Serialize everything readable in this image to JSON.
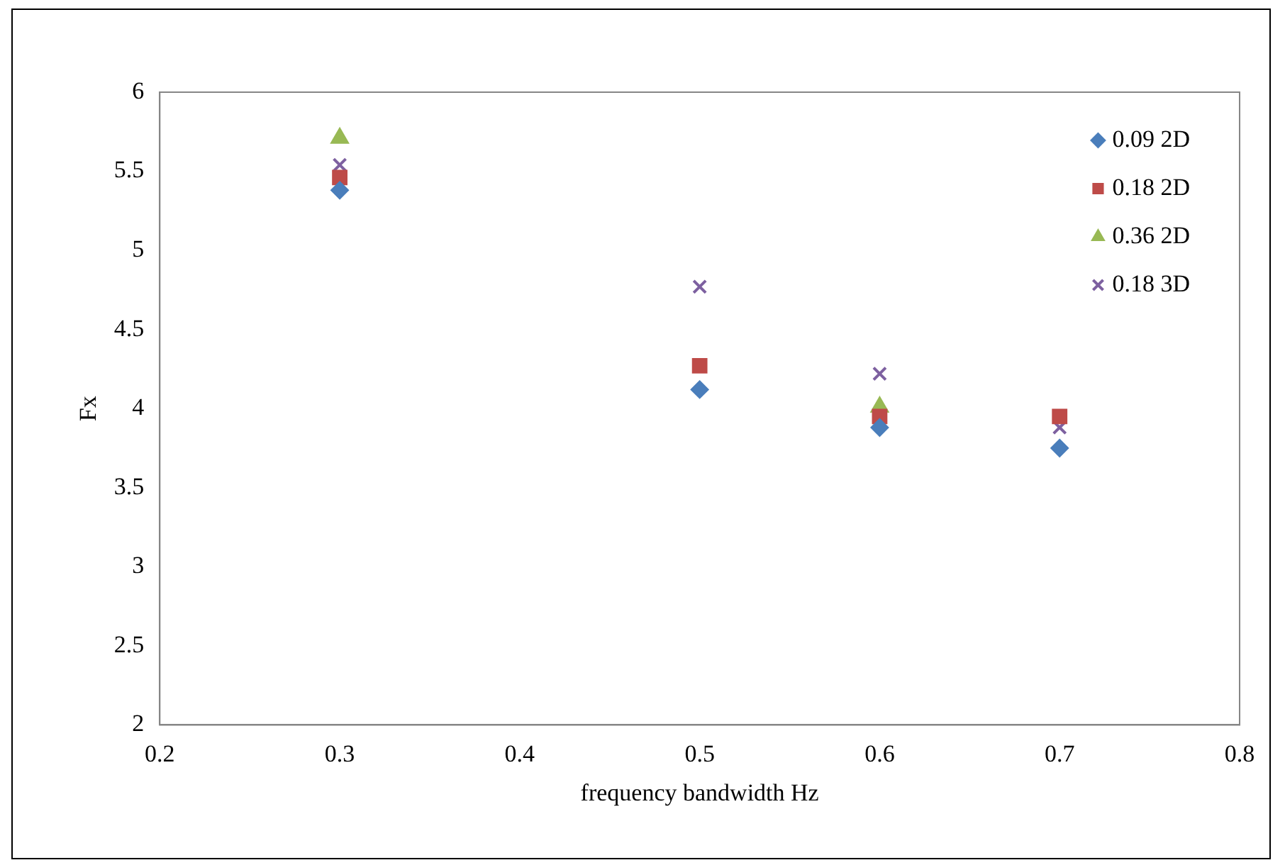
{
  "chart_data": {
    "type": "scatter",
    "xlabel": "frequency bandwidth Hz",
    "ylabel": "Fx",
    "x": [
      0.3,
      0.5,
      0.6,
      0.7
    ],
    "series": [
      {
        "name": "0.09 2D",
        "color": "#4a7ebb",
        "marker": "diamond",
        "values": [
          5.38,
          4.12,
          3.88,
          3.75
        ]
      },
      {
        "name": "0.18 2D",
        "color": "#be4b48",
        "marker": "square",
        "values": [
          5.46,
          4.27,
          3.95,
          3.95
        ]
      },
      {
        "name": "0.36 2D",
        "color": "#98b954",
        "marker": "triangle",
        "values": [
          5.71,
          null,
          4.01,
          null
        ]
      },
      {
        "name": "0.18 3D",
        "color": "#7d60a0",
        "marker": "cross",
        "values": [
          5.54,
          4.77,
          4.22,
          3.88
        ]
      }
    ],
    "xlim": [
      0.2,
      0.8
    ],
    "xticks": [
      0.2,
      0.3,
      0.4,
      0.5,
      0.6,
      0.7,
      0.8
    ],
    "ylim": [
      2,
      6
    ],
    "yticks": [
      2,
      2.5,
      3,
      3.5,
      4,
      4.5,
      5,
      5.5,
      6
    ],
    "grid": false,
    "legend": "top right"
  }
}
